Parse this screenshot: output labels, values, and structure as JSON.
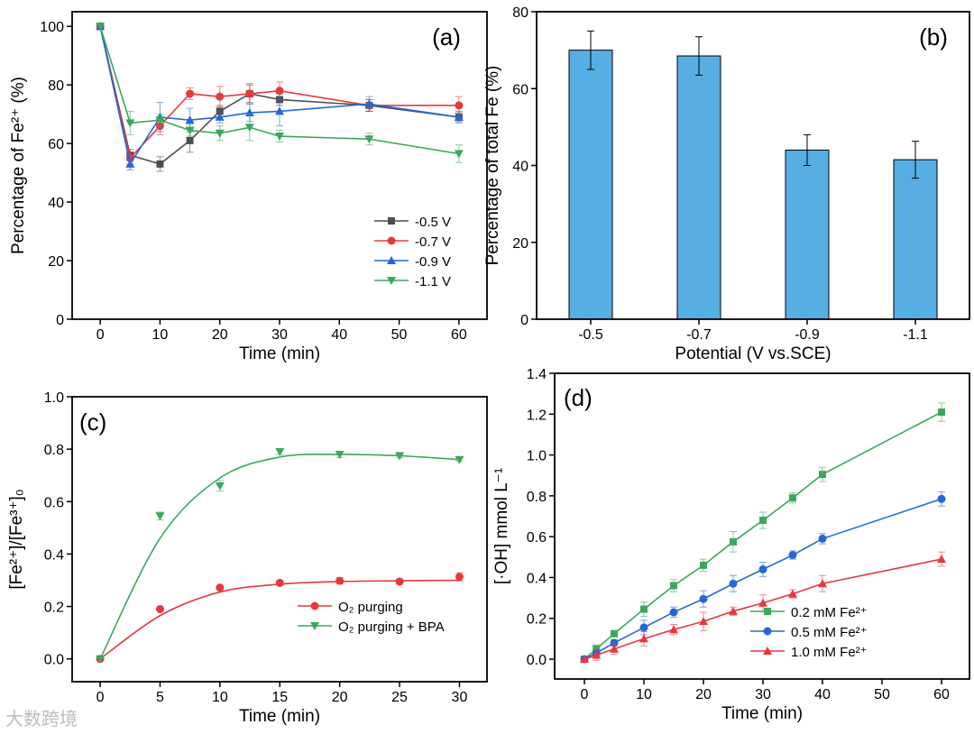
{
  "watermark": "大数跨境",
  "chart_data": [
    {
      "id": "a",
      "type": "line",
      "panel_label": "(a)",
      "xlabel": "Time (min)",
      "ylabel": "Percentage of Fe²⁺ (%)",
      "xlim": [
        -4.7,
        64.7
      ],
      "ylim": [
        0,
        105
      ],
      "xticks": [
        0,
        10,
        20,
        30,
        40,
        50,
        60
      ],
      "yticks": [
        0,
        20,
        40,
        60,
        80,
        100
      ],
      "legend_position": "lower-right",
      "x": [
        0,
        5,
        10,
        15,
        20,
        25,
        30,
        45,
        60
      ],
      "series": [
        {
          "name": "-0.5 V",
          "color": "#4d4d4d",
          "marker": "square",
          "values": [
            100,
            56,
            53,
            61,
            71,
            77,
            75,
            73,
            69
          ],
          "errors": [
            0,
            2,
            2.5,
            4,
            2,
            3,
            2,
            2,
            1.5
          ]
        },
        {
          "name": "-0.7 V",
          "color": "#e8383d",
          "marker": "circle",
          "values": [
            100,
            55,
            66,
            77,
            76,
            77,
            78,
            73,
            73
          ],
          "errors": [
            0,
            2,
            3,
            2,
            3.5,
            3.5,
            3,
            2,
            3
          ]
        },
        {
          "name": "-0.9 V",
          "color": "#2468d6",
          "marker": "triangle-up",
          "values": [
            100,
            53,
            69,
            68,
            69,
            70.5,
            71,
            73.5,
            69
          ],
          "errors": [
            0,
            2,
            5,
            4,
            2,
            3,
            5,
            2.5,
            2
          ]
        },
        {
          "name": "-1.1 V",
          "color": "#3aa85c",
          "marker": "triangle-down",
          "values": [
            100,
            67,
            68,
            64.5,
            63.5,
            65.5,
            62.5,
            61.5,
            56.5
          ],
          "errors": [
            0,
            4,
            2,
            2,
            2.5,
            4.5,
            2,
            2,
            3
          ]
        }
      ]
    },
    {
      "id": "b",
      "type": "bar",
      "panel_label": "(b)",
      "xlabel": "Potential (V vs.SCE)",
      "ylabel": "Percentage of total Fe (%)",
      "ylim": [
        0,
        80
      ],
      "yticks": [
        0,
        20,
        40,
        60,
        80
      ],
      "categories": [
        "-0.5",
        "-0.7",
        "-0.9",
        "-1.1"
      ],
      "values": [
        70,
        68.5,
        44,
        41.5
      ],
      "errors": [
        5,
        5,
        4,
        4.8
      ],
      "color": "#56aee2"
    },
    {
      "id": "c",
      "type": "scatter",
      "panel_label": "(c)",
      "xlabel": "Time (min)",
      "ylabel": "[Fe²⁺]/[Fe³⁺]₀",
      "xlim": [
        -2.34,
        32.3
      ],
      "ylim": [
        -0.087,
        1.0
      ],
      "xticks": [
        0,
        5,
        10,
        15,
        20,
        25,
        30
      ],
      "yticks": [
        0.0,
        0.2,
        0.4,
        0.6,
        0.8,
        1.0
      ],
      "legend_position": "lower-right",
      "fit_curve": true,
      "x": [
        0,
        5,
        10,
        15,
        20,
        25,
        30
      ],
      "series": [
        {
          "name": "O₂ purging",
          "color": "#e8383d",
          "marker": "circle",
          "values": [
            0,
            0.19,
            0.272,
            0.29,
            0.298,
            0.295,
            0.313
          ],
          "errors": [
            0,
            0.006,
            0.006,
            0.008,
            0.012,
            0.008,
            0.016
          ],
          "fit": [
            0,
            0.165,
            0.255,
            0.285,
            0.295,
            0.298,
            0.3
          ]
        },
        {
          "name": "O₂ purging + BPA",
          "color": "#3aa85c",
          "marker": "triangle-down",
          "values": [
            0,
            0.545,
            0.66,
            0.79,
            0.78,
            0.775,
            0.76
          ],
          "errors": [
            0,
            0.015,
            0.02,
            0.01,
            0.012,
            0.008,
            0.006
          ],
          "fit": [
            0,
            0.46,
            0.69,
            0.77,
            0.78,
            0.775,
            0.76
          ]
        }
      ]
    },
    {
      "id": "d",
      "type": "line",
      "panel_label": "(d)",
      "xlabel": "Time (min)",
      "ylabel": "[·OH] mmol L⁻¹",
      "xlim": [
        -5,
        64.7
      ],
      "ylim": [
        -0.097,
        1.4
      ],
      "xticks": [
        0,
        10,
        20,
        30,
        40,
        50,
        60
      ],
      "yticks": [
        0.0,
        0.2,
        0.4,
        0.6,
        0.8,
        1.0,
        1.2,
        1.4
      ],
      "legend_position": "lower-right",
      "x": [
        0,
        2,
        5,
        10,
        15,
        20,
        25,
        30,
        35,
        40,
        60
      ],
      "series": [
        {
          "name": "0.2 mM Fe²⁺",
          "color": "#3aa85c",
          "marker": "square",
          "values": [
            0,
            0.05,
            0.125,
            0.245,
            0.36,
            0.46,
            0.575,
            0.68,
            0.79,
            0.905,
            1.21
          ],
          "errors": [
            0,
            0.02,
            0.015,
            0.035,
            0.03,
            0.03,
            0.05,
            0.04,
            0.025,
            0.035,
            0.045
          ]
        },
        {
          "name": "0.5 mM Fe²⁺",
          "color": "#2468d6",
          "marker": "circle",
          "values": [
            0,
            0.03,
            0.08,
            0.155,
            0.23,
            0.295,
            0.37,
            0.44,
            0.51,
            0.59,
            0.785
          ],
          "errors": [
            0,
            0.015,
            0.015,
            0.035,
            0.025,
            0.04,
            0.04,
            0.035,
            0.02,
            0.025,
            0.035
          ]
        },
        {
          "name": "1.0 mM Fe²⁺",
          "color": "#e8383d",
          "marker": "triangle-up",
          "values": [
            0,
            0.02,
            0.05,
            0.1,
            0.145,
            0.185,
            0.235,
            0.275,
            0.32,
            0.37,
            0.49
          ],
          "errors": [
            0,
            0.025,
            0.025,
            0.035,
            0.025,
            0.045,
            0.02,
            0.04,
            0.02,
            0.04,
            0.035
          ]
        }
      ]
    }
  ]
}
